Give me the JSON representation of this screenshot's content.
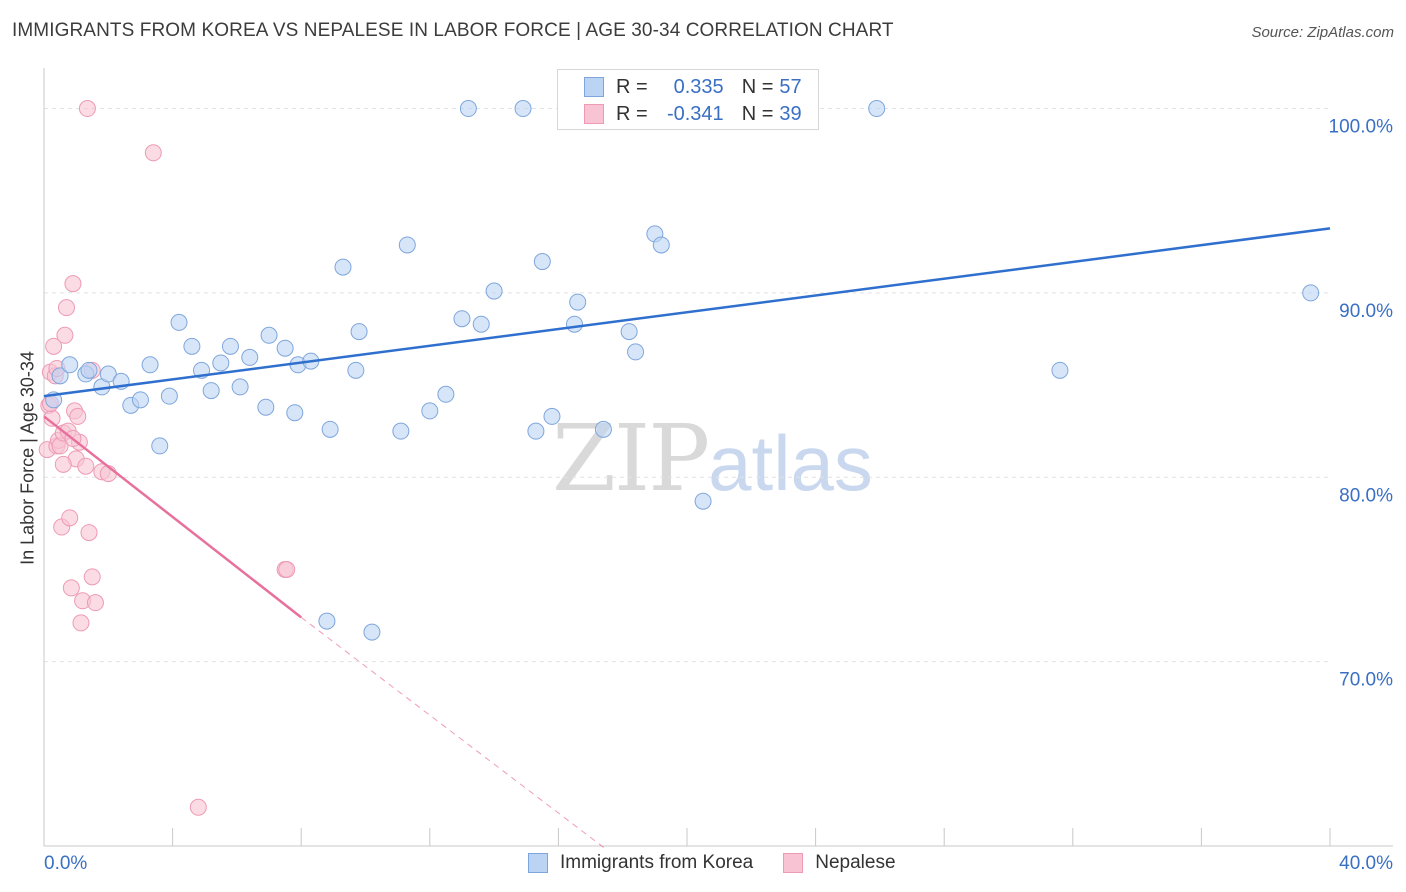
{
  "title": "IMMIGRANTS FROM KOREA VS NEPALESE IN LABOR FORCE | AGE 30-34 CORRELATION CHART",
  "source": "Source: ZipAtlas.com",
  "watermark": {
    "zip": "ZIP",
    "atlas": "atlas"
  },
  "legend": {
    "r_label": "R =",
    "n_label": "N =",
    "series": [
      {
        "r": "0.335",
        "n": "57"
      },
      {
        "r": "-0.341",
        "n": "39"
      }
    ]
  },
  "chart_data": {
    "type": "scatter",
    "title": "IMMIGRANTS FROM KOREA VS NEPALESE IN LABOR FORCE | AGE 30-34 CORRELATION CHART",
    "xlabel": "",
    "ylabel": "In Labor Force | Age 30-34",
    "xlim": [
      0,
      40
    ],
    "ylim": [
      60.0,
      103.5
    ],
    "x_tick_labels": [
      "0.0%",
      "40.0%"
    ],
    "y_ticks": [
      70,
      80,
      90,
      100
    ],
    "y_tick_labels": [
      "70.0%",
      "80.0%",
      "90.0%",
      "100.0%"
    ],
    "grid": true,
    "colors": {
      "korea_fill": "#bcd4f3",
      "korea_stroke": "#7ea6dc",
      "korea_line": "#2f6fcd",
      "nepal_fill": "#f8c4d4",
      "nepal_stroke": "#ee9ab5",
      "nepal_line": "#e8709c",
      "tick_label": "#3a6fc4",
      "grid": "#e2e2e2"
    },
    "series": [
      {
        "name": "Immigrants from Korea",
        "trend": {
          "x": [
            0,
            40
          ],
          "y": [
            84.4,
            93.5
          ]
        },
        "points": [
          {
            "x": 0.3,
            "y": 84.2
          },
          {
            "x": 0.5,
            "y": 85.5
          },
          {
            "x": 0.8,
            "y": 86.1
          },
          {
            "x": 1.3,
            "y": 85.6
          },
          {
            "x": 1.4,
            "y": 85.8
          },
          {
            "x": 1.8,
            "y": 84.9
          },
          {
            "x": 2.0,
            "y": 85.6
          },
          {
            "x": 2.4,
            "y": 85.2
          },
          {
            "x": 2.7,
            "y": 83.9
          },
          {
            "x": 3.0,
            "y": 84.2
          },
          {
            "x": 3.3,
            "y": 86.1
          },
          {
            "x": 3.6,
            "y": 81.7
          },
          {
            "x": 3.9,
            "y": 84.4
          },
          {
            "x": 4.2,
            "y": 88.4
          },
          {
            "x": 4.6,
            "y": 87.1
          },
          {
            "x": 4.9,
            "y": 85.8
          },
          {
            "x": 5.2,
            "y": 84.7
          },
          {
            "x": 5.5,
            "y": 86.2
          },
          {
            "x": 5.8,
            "y": 87.1
          },
          {
            "x": 6.1,
            "y": 84.9
          },
          {
            "x": 6.4,
            "y": 86.5
          },
          {
            "x": 6.9,
            "y": 83.8
          },
          {
            "x": 7.0,
            "y": 87.7
          },
          {
            "x": 7.5,
            "y": 87.0
          },
          {
            "x": 7.8,
            "y": 83.5
          },
          {
            "x": 7.9,
            "y": 86.1
          },
          {
            "x": 8.3,
            "y": 86.3
          },
          {
            "x": 8.8,
            "y": 72.2
          },
          {
            "x": 8.9,
            "y": 82.6
          },
          {
            "x": 9.3,
            "y": 91.4
          },
          {
            "x": 9.7,
            "y": 85.8
          },
          {
            "x": 9.8,
            "y": 87.9
          },
          {
            "x": 10.2,
            "y": 71.6
          },
          {
            "x": 11.1,
            "y": 82.5
          },
          {
            "x": 11.3,
            "y": 92.6
          },
          {
            "x": 12.0,
            "y": 83.6
          },
          {
            "x": 12.5,
            "y": 84.5
          },
          {
            "x": 13.0,
            "y": 88.6
          },
          {
            "x": 13.2,
            "y": 100.0
          },
          {
            "x": 13.6,
            "y": 88.3
          },
          {
            "x": 14.0,
            "y": 90.1
          },
          {
            "x": 14.9,
            "y": 100.0
          },
          {
            "x": 15.3,
            "y": 82.5
          },
          {
            "x": 15.5,
            "y": 91.7
          },
          {
            "x": 15.8,
            "y": 83.3
          },
          {
            "x": 16.5,
            "y": 88.3
          },
          {
            "x": 16.6,
            "y": 89.5
          },
          {
            "x": 17.4,
            "y": 82.6
          },
          {
            "x": 18.2,
            "y": 87.9
          },
          {
            "x": 18.4,
            "y": 86.8
          },
          {
            "x": 19.0,
            "y": 93.2
          },
          {
            "x": 19.2,
            "y": 92.6
          },
          {
            "x": 19.7,
            "y": 100.0
          },
          {
            "x": 20.5,
            "y": 78.7
          },
          {
            "x": 25.9,
            "y": 100.0
          },
          {
            "x": 31.6,
            "y": 85.8
          },
          {
            "x": 39.4,
            "y": 90.0
          }
        ]
      },
      {
        "name": "Nepalese",
        "trend": {
          "x": [
            0,
            8.0
          ],
          "y": [
            83.3,
            72.4
          ]
        },
        "trend_dashed": {
          "x": [
            8.0,
            17.5
          ],
          "y": [
            72.4,
            59.8
          ]
        },
        "points": [
          {
            "x": 0.1,
            "y": 81.5
          },
          {
            "x": 0.15,
            "y": 83.9
          },
          {
            "x": 0.2,
            "y": 85.7
          },
          {
            "x": 0.25,
            "y": 83.2
          },
          {
            "x": 0.3,
            "y": 87.1
          },
          {
            "x": 0.35,
            "y": 85.5
          },
          {
            "x": 0.4,
            "y": 81.7
          },
          {
            "x": 0.45,
            "y": 82.0
          },
          {
            "x": 0.5,
            "y": 81.7
          },
          {
            "x": 0.55,
            "y": 77.3
          },
          {
            "x": 0.6,
            "y": 82.4
          },
          {
            "x": 0.65,
            "y": 87.7
          },
          {
            "x": 0.7,
            "y": 89.2
          },
          {
            "x": 0.75,
            "y": 82.5
          },
          {
            "x": 0.8,
            "y": 77.8
          },
          {
            "x": 0.85,
            "y": 74.0
          },
          {
            "x": 0.9,
            "y": 90.5
          },
          {
            "x": 0.95,
            "y": 83.6
          },
          {
            "x": 1.0,
            "y": 81.0
          },
          {
            "x": 1.05,
            "y": 83.3
          },
          {
            "x": 1.1,
            "y": 81.9
          },
          {
            "x": 1.15,
            "y": 72.1
          },
          {
            "x": 1.2,
            "y": 73.3
          },
          {
            "x": 1.3,
            "y": 80.6
          },
          {
            "x": 1.35,
            "y": 100.0
          },
          {
            "x": 1.4,
            "y": 77.0
          },
          {
            "x": 1.5,
            "y": 85.8
          },
          {
            "x": 1.5,
            "y": 74.6
          },
          {
            "x": 1.6,
            "y": 73.2
          },
          {
            "x": 1.8,
            "y": 80.3
          },
          {
            "x": 2.0,
            "y": 80.2
          },
          {
            "x": 3.4,
            "y": 97.6
          },
          {
            "x": 4.8,
            "y": 62.1
          },
          {
            "x": 7.5,
            "y": 75.0
          },
          {
            "x": 7.55,
            "y": 75.0
          },
          {
            "x": 0.2,
            "y": 84.0
          },
          {
            "x": 0.4,
            "y": 85.9
          },
          {
            "x": 0.6,
            "y": 80.7
          },
          {
            "x": 0.9,
            "y": 82.1
          }
        ]
      }
    ]
  },
  "bottom_legend": [
    "Immigrants from Korea",
    "Nepalese"
  ]
}
